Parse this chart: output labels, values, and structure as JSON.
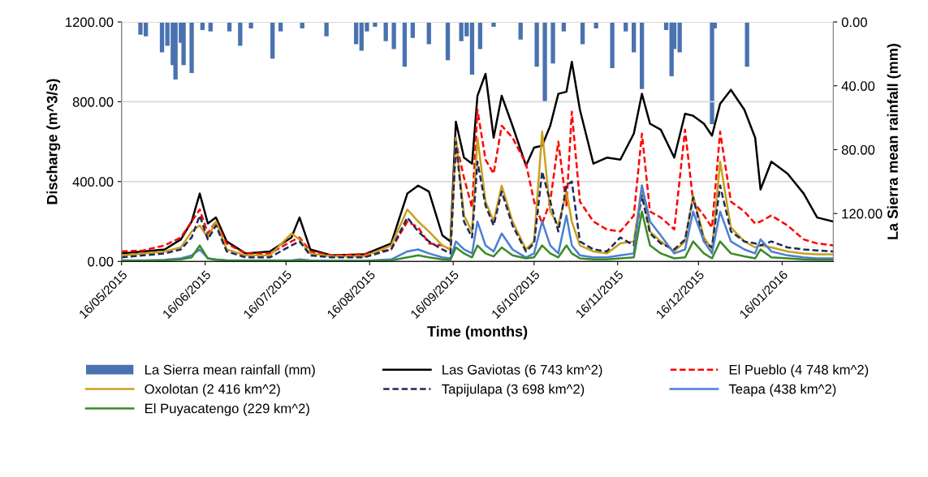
{
  "chart_data": {
    "type": "line",
    "xlabel": "Time (months)",
    "ylabel": "Discharge (m^3/s)",
    "y2label": "La Sierra mean rainfall (mm)",
    "xlim": [
      "2015-05-16",
      "2016-02-04"
    ],
    "xticks": [
      {
        "value": "2015-05-16",
        "label": "16/05/2015"
      },
      {
        "value": "2015-06-16",
        "label": "16/06/2015"
      },
      {
        "value": "2015-07-16",
        "label": "16/07/2015"
      },
      {
        "value": "2015-08-16",
        "label": "16/08/2015"
      },
      {
        "value": "2015-09-16",
        "label": "16/09/2015"
      },
      {
        "value": "2015-10-16",
        "label": "16/10/2015"
      },
      {
        "value": "2015-11-16",
        "label": "16/11/2015"
      },
      {
        "value": "2015-12-16",
        "label": "16/12/2015"
      },
      {
        "value": "2016-01-16",
        "label": "16/01/2016"
      }
    ],
    "ylim": [
      0,
      1200
    ],
    "yticks": [
      {
        "value": 0,
        "label": "0.00"
      },
      {
        "value": 400,
        "label": "400.00"
      },
      {
        "value": 800,
        "label": "800.00"
      },
      {
        "value": 1200,
        "label": "1200.00"
      }
    ],
    "y2lim": [
      150,
      0
    ],
    "y2ticks": [
      {
        "value": 0,
        "label": "0.00"
      },
      {
        "value": 40,
        "label": "40.00"
      },
      {
        "value": 80,
        "label": "80.00"
      },
      {
        "value": 120,
        "label": "120.00"
      }
    ],
    "grid": "y",
    "legend": "bottom",
    "x": [
      "2015-05-16",
      "2015-05-24",
      "2015-06-01",
      "2015-06-07",
      "2015-06-11",
      "2015-06-14",
      "2015-06-17",
      "2015-06-20",
      "2015-06-24",
      "2015-07-01",
      "2015-07-10",
      "2015-07-18",
      "2015-07-21",
      "2015-07-25",
      "2015-08-02",
      "2015-08-14",
      "2015-08-24",
      "2015-08-30",
      "2015-09-03",
      "2015-09-07",
      "2015-09-12",
      "2015-09-15",
      "2015-09-17",
      "2015-09-20",
      "2015-09-23",
      "2015-09-25",
      "2015-09-28",
      "2015-10-01",
      "2015-10-04",
      "2015-10-08",
      "2015-10-13",
      "2015-10-16",
      "2015-10-19",
      "2015-10-22",
      "2015-10-25",
      "2015-10-28",
      "2015-10-30",
      "2015-11-02",
      "2015-11-07",
      "2015-11-12",
      "2015-11-17",
      "2015-11-22",
      "2015-11-25",
      "2015-11-28",
      "2015-12-02",
      "2015-12-07",
      "2015-12-11",
      "2015-12-14",
      "2015-12-18",
      "2015-12-21",
      "2015-12-24",
      "2015-12-28",
      "2016-01-02",
      "2016-01-06",
      "2016-01-08",
      "2016-01-12",
      "2016-01-18",
      "2016-01-24",
      "2016-01-29",
      "2016-02-04"
    ],
    "series": [
      {
        "name": "La Sierra mean rainfall (mm)",
        "type": "bar",
        "axis": "y2",
        "color": "#4a72b0",
        "x": [
          "2015-05-23",
          "2015-05-25",
          "2015-05-31",
          "2015-06-02",
          "2015-06-04",
          "2015-06-05",
          "2015-06-07",
          "2015-06-08",
          "2015-06-11",
          "2015-06-15",
          "2015-06-18",
          "2015-06-25",
          "2015-06-29",
          "2015-07-03",
          "2015-07-11",
          "2015-07-14",
          "2015-07-22",
          "2015-07-31",
          "2015-08-11",
          "2015-08-13",
          "2015-08-15",
          "2015-08-18",
          "2015-08-22",
          "2015-08-25",
          "2015-08-29",
          "2015-09-01",
          "2015-09-07",
          "2015-09-14",
          "2015-09-19",
          "2015-09-21",
          "2015-09-23",
          "2015-09-26",
          "2015-10-01",
          "2015-10-11",
          "2015-10-17",
          "2015-10-20",
          "2015-10-23",
          "2015-10-27",
          "2015-11-03",
          "2015-11-08",
          "2015-11-14",
          "2015-11-19",
          "2015-11-22",
          "2015-11-25",
          "2015-12-04",
          "2015-12-06",
          "2015-12-07",
          "2015-12-09",
          "2015-12-21",
          "2015-12-22",
          "2016-01-03"
        ],
        "values": [
          8,
          9,
          19,
          15,
          27,
          36,
          13,
          27,
          32,
          5,
          6,
          6,
          15,
          4,
          23,
          6,
          4,
          9,
          14,
          18,
          6,
          3,
          12,
          17,
          28,
          10,
          14,
          24,
          12,
          9,
          33,
          17,
          3,
          11,
          28,
          50,
          26,
          6,
          14,
          4,
          29,
          6,
          19,
          42,
          5,
          34,
          17,
          19,
          64,
          4,
          28
        ]
      },
      {
        "name": "Las Gaviotas (6 743 km^2)",
        "color": "#000000",
        "values": [
          40,
          50,
          60,
          110,
          200,
          340,
          190,
          220,
          100,
          40,
          50,
          120,
          220,
          60,
          30,
          35,
          90,
          340,
          380,
          350,
          130,
          100,
          700,
          520,
          490,
          830,
          940,
          620,
          830,
          680,
          480,
          570,
          580,
          680,
          840,
          850,
          1000,
          760,
          490,
          520,
          510,
          640,
          840,
          690,
          660,
          520,
          740,
          730,
          690,
          630,
          790,
          860,
          760,
          620,
          360,
          500,
          440,
          340,
          220,
          200
        ]
      },
      {
        "name": "El Pueblo (4 748 km^2)",
        "color": "#ff0000",
        "line_style": "dashed",
        "values": [
          50,
          55,
          80,
          120,
          200,
          260,
          140,
          200,
          90,
          40,
          40,
          100,
          120,
          50,
          30,
          35,
          60,
          200,
          170,
          90,
          80,
          60,
          600,
          420,
          270,
          760,
          510,
          440,
          680,
          620,
          490,
          300,
          190,
          300,
          600,
          280,
          750,
          300,
          200,
          160,
          150,
          230,
          640,
          250,
          220,
          160,
          660,
          300,
          230,
          170,
          650,
          300,
          250,
          190,
          200,
          230,
          180,
          110,
          90,
          80
        ]
      },
      {
        "name": "Oxolotan (2 416 km^2)",
        "color": "#c9a01e",
        "values": [
          30,
          40,
          50,
          70,
          150,
          180,
          120,
          200,
          60,
          30,
          30,
          140,
          110,
          40,
          25,
          25,
          80,
          260,
          200,
          150,
          80,
          60,
          620,
          230,
          150,
          620,
          300,
          200,
          380,
          200,
          60,
          100,
          650,
          250,
          180,
          350,
          200,
          80,
          50,
          40,
          90,
          100,
          380,
          150,
          100,
          50,
          100,
          330,
          120,
          60,
          500,
          170,
          100,
          70,
          80,
          70,
          50,
          40,
          35,
          35
        ]
      },
      {
        "name": "Tapijulapa (3 698 km^2)",
        "color": "#1f2a5a",
        "line_style": "dashed",
        "values": [
          20,
          30,
          40,
          60,
          120,
          230,
          110,
          180,
          50,
          20,
          20,
          80,
          100,
          30,
          20,
          20,
          60,
          220,
          150,
          100,
          60,
          40,
          600,
          200,
          120,
          500,
          280,
          180,
          350,
          180,
          50,
          90,
          450,
          300,
          150,
          380,
          400,
          100,
          60,
          50,
          120,
          80,
          330,
          140,
          90,
          60,
          110,
          320,
          100,
          70,
          380,
          150,
          100,
          90,
          80,
          100,
          70,
          60,
          55,
          50
        ]
      },
      {
        "name": "Teapa (438 km^2)",
        "color": "#4a7fd4",
        "values": [
          5,
          5,
          8,
          15,
          30,
          60,
          15,
          10,
          5,
          5,
          5,
          5,
          10,
          5,
          3,
          3,
          10,
          50,
          60,
          40,
          20,
          15,
          100,
          60,
          40,
          200,
          80,
          50,
          140,
          60,
          20,
          40,
          200,
          80,
          40,
          230,
          80,
          30,
          20,
          20,
          30,
          40,
          380,
          200,
          130,
          40,
          60,
          250,
          100,
          40,
          250,
          100,
          60,
          40,
          110,
          50,
          30,
          20,
          15,
          15
        ]
      },
      {
        "name": "El Puyacatengo (229 km^2)",
        "color": "#3a8a2a",
        "values": [
          3,
          3,
          5,
          10,
          20,
          80,
          15,
          8,
          5,
          3,
          3,
          3,
          5,
          3,
          2,
          2,
          5,
          20,
          30,
          20,
          10,
          8,
          70,
          40,
          20,
          80,
          40,
          25,
          70,
          30,
          15,
          20,
          80,
          40,
          20,
          80,
          40,
          15,
          10,
          10,
          15,
          20,
          250,
          80,
          40,
          15,
          20,
          100,
          40,
          15,
          100,
          40,
          25,
          15,
          60,
          20,
          15,
          10,
          8,
          8
        ]
      }
    ]
  }
}
